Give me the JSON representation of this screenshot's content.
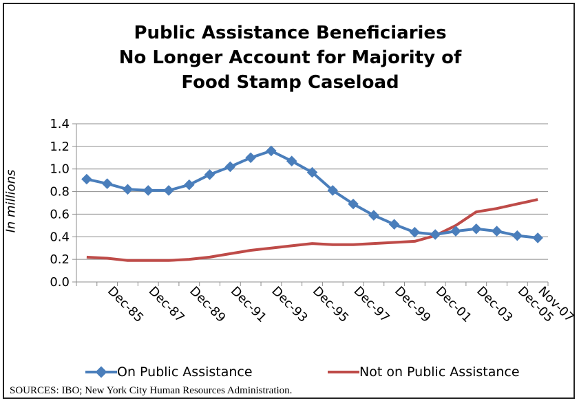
{
  "chart": {
    "title_lines": [
      "Public Assistance Beneficiaries",
      "No Longer Account for Majority of",
      "Food Stamp Caseload"
    ],
    "ylabel": "In millions",
    "source": "SOURCES: IBO; New York City Human Resources Administration."
  },
  "chart_data": {
    "type": "line",
    "title": "Public Assistance Beneficiaries No Longer Account for Majority of Food Stamp Caseload",
    "ylabel": "In millions",
    "xlabel": "",
    "ylim": [
      0,
      1.4
    ],
    "yticks": [
      "0.0",
      "0.2",
      "0.4",
      "0.6",
      "0.8",
      "1.0",
      "1.2",
      "1.4"
    ],
    "x_tick_labels": [
      "Dec-85",
      "Dec-87",
      "Dec-89",
      "Dec-91",
      "Dec-93",
      "Dec-95",
      "Dec-97",
      "Dec-99",
      "Dec-01",
      "Dec-03",
      "Dec-05",
      "Nov-07"
    ],
    "x": [
      "Dec-84",
      "Dec-85",
      "Dec-86",
      "Dec-87",
      "Dec-88",
      "Dec-89",
      "Dec-90",
      "Dec-91",
      "Dec-92",
      "Dec-93",
      "Dec-94",
      "Dec-95",
      "Dec-96",
      "Dec-97",
      "Dec-98",
      "Dec-99",
      "Dec-00",
      "Dec-01",
      "Dec-02",
      "Dec-03",
      "Dec-04",
      "Dec-05",
      "Nov-07"
    ],
    "grid": true,
    "legend_position": "bottom",
    "series": [
      {
        "name": "On Public Assistance",
        "color": "#4a7ebb",
        "marker": "diamond",
        "values": [
          0.91,
          0.87,
          0.82,
          0.81,
          0.81,
          0.86,
          0.95,
          1.02,
          1.1,
          1.16,
          1.07,
          0.97,
          0.81,
          0.69,
          0.59,
          0.51,
          0.44,
          0.42,
          0.45,
          0.47,
          0.45,
          0.41,
          0.39
        ]
      },
      {
        "name": "Not on Public Assistance",
        "color": "#be4b48",
        "marker": "none",
        "values": [
          0.22,
          0.21,
          0.19,
          0.19,
          0.19,
          0.2,
          0.22,
          0.25,
          0.28,
          0.3,
          0.32,
          0.34,
          0.33,
          0.33,
          0.34,
          0.35,
          0.36,
          0.41,
          0.5,
          0.62,
          0.65,
          0.69,
          0.73
        ]
      }
    ]
  }
}
